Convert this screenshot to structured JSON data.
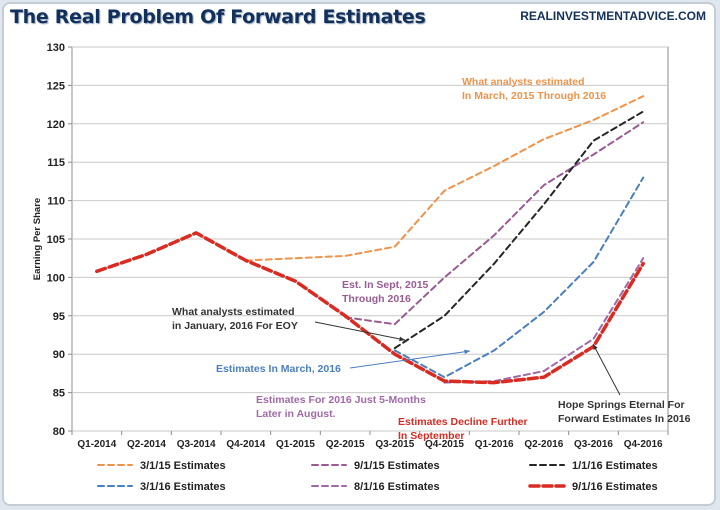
{
  "header": {
    "title": "The Real Problem Of Forward Estimates",
    "source": "REALINVESTMENTADVICE.COM"
  },
  "chart_data": {
    "type": "line",
    "ylabel": "Earning Per Share",
    "ylim": [
      80,
      130
    ],
    "yticks": [
      80,
      85,
      90,
      95,
      100,
      105,
      110,
      115,
      120,
      125,
      130
    ],
    "categories": [
      "Q1-2014",
      "Q2-2014",
      "Q3-2014",
      "Q4-2014",
      "Q1-2015",
      "Q2-2015",
      "Q3-2015",
      "Q4-2015",
      "Q1-2016",
      "Q2-2016",
      "Q3-2016",
      "Q4-2016"
    ],
    "grid": true,
    "legend_position": "bottom",
    "series": [
      {
        "name": "3/1/15 Estimates",
        "color": "#f0934a",
        "dash": "dashed",
        "width": 2,
        "start": 3,
        "values": [
          null,
          null,
          null,
          102.2,
          102.5,
          102.8,
          104.0,
          111.3,
          114.5,
          118.0,
          120.5,
          123.6
        ]
      },
      {
        "name": "9/1/15 Estimates",
        "color": "#9a5a94",
        "dash": "dashed",
        "width": 2,
        "start": 5,
        "values": [
          null,
          null,
          null,
          null,
          null,
          94.8,
          93.9,
          100.0,
          105.5,
          112.0,
          116.0,
          120.2
        ]
      },
      {
        "name": "1/1/16 Estimates",
        "color": "#262626",
        "dash": "dashed",
        "width": 2,
        "start": 6,
        "values": [
          null,
          null,
          null,
          null,
          null,
          null,
          90.8,
          95.0,
          101.8,
          109.5,
          117.8,
          121.6
        ]
      },
      {
        "name": "3/1/16 Estimates",
        "color": "#4a7fc1",
        "dash": "dashed",
        "width": 2,
        "start": 6,
        "values": [
          null,
          null,
          null,
          null,
          null,
          null,
          90.5,
          87.0,
          90.5,
          95.5,
          102.0,
          113.0
        ]
      },
      {
        "name": "8/1/16 Estimates",
        "color": "#a06aa8",
        "dash": "dashed",
        "width": 2,
        "start": 7,
        "values": [
          null,
          null,
          null,
          null,
          null,
          null,
          null,
          86.3,
          86.5,
          87.8,
          92.0,
          102.5
        ]
      },
      {
        "name": "9/1/16 Estimates",
        "color": "#d92b22",
        "dash": "bold-dashed",
        "width": 3.5,
        "start": 0,
        "values": [
          100.8,
          103.0,
          105.8,
          102.2,
          99.5,
          95.0,
          90.0,
          86.5,
          86.3,
          87.0,
          91.0,
          101.8
        ]
      }
    ],
    "annotations": [
      {
        "lines": [
          "What analysts estimated",
          "In March, 2015  Through 2016"
        ],
        "color": "#f0934a"
      },
      {
        "lines": [
          "Est. In Sept, 2015",
          "Through 2016"
        ],
        "color": "#9a5a94"
      },
      {
        "lines": [
          "What analysts estimated",
          "in January, 2016 For EOY"
        ],
        "color": "#333333"
      },
      {
        "lines": [
          "Estimates In March, 2016"
        ],
        "color": "#4a7fc1"
      },
      {
        "lines": [
          "Estimates For 2016 Just 5-Months",
          "Later in August."
        ],
        "color": "#a06aa8"
      },
      {
        "lines": [
          "Estimates Decline Further",
          "In September"
        ],
        "color": "#d92b22"
      },
      {
        "lines": [
          "Hope Springs Eternal  For",
          "Forward Estimates In 2016"
        ],
        "color": "#333333"
      }
    ]
  }
}
